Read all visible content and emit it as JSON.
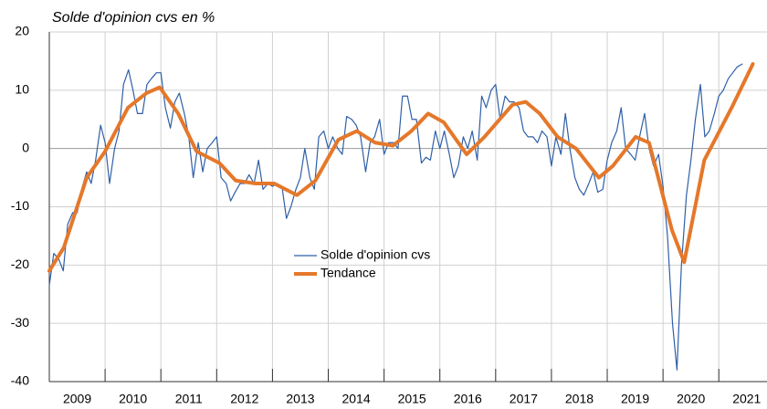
{
  "chart_data": {
    "type": "line",
    "title": "Solde d'opinion cvs en %",
    "xlim": [
      2009,
      2021.88
    ],
    "xticks": [
      2009,
      2010,
      2011,
      2012,
      2013,
      2014,
      2015,
      2016,
      2017,
      2018,
      2019,
      2020,
      2021
    ],
    "ylim": [
      -40,
      20
    ],
    "yticks": [
      -40,
      -30,
      -20,
      -10,
      0,
      10,
      20
    ],
    "grid": true,
    "series": [
      {
        "name": "Solde d'opinion cvs",
        "color": "#2f5fa7",
        "x": [
          2009,
          2009.08,
          2009.17,
          2009.25,
          2009.33,
          2009.42,
          2009.5,
          2009.58,
          2009.67,
          2009.75,
          2009.83,
          2009.92,
          2010,
          2010.08,
          2010.17,
          2010.25,
          2010.33,
          2010.42,
          2010.5,
          2010.58,
          2010.67,
          2010.75,
          2010.83,
          2010.92,
          2011,
          2011.08,
          2011.17,
          2011.25,
          2011.33,
          2011.42,
          2011.5,
          2011.58,
          2011.67,
          2011.75,
          2011.83,
          2011.92,
          2012,
          2012.08,
          2012.17,
          2012.25,
          2012.33,
          2012.42,
          2012.5,
          2012.58,
          2012.67,
          2012.75,
          2012.83,
          2012.92,
          2013,
          2013.08,
          2013.17,
          2013.25,
          2013.33,
          2013.42,
          2013.5,
          2013.58,
          2013.67,
          2013.75,
          2013.83,
          2013.92,
          2014,
          2014.08,
          2014.17,
          2014.25,
          2014.33,
          2014.42,
          2014.5,
          2014.58,
          2014.67,
          2014.75,
          2014.83,
          2014.92,
          2015,
          2015.08,
          2015.17,
          2015.25,
          2015.33,
          2015.42,
          2015.5,
          2015.58,
          2015.67,
          2015.75,
          2015.83,
          2015.92,
          2016,
          2016.08,
          2016.17,
          2016.25,
          2016.33,
          2016.42,
          2016.5,
          2016.58,
          2016.67,
          2016.75,
          2016.83,
          2016.92,
          2017,
          2017.08,
          2017.17,
          2017.25,
          2017.33,
          2017.42,
          2017.5,
          2017.58,
          2017.67,
          2017.75,
          2017.83,
          2017.92,
          2018,
          2018.08,
          2018.17,
          2018.25,
          2018.33,
          2018.42,
          2018.5,
          2018.58,
          2018.67,
          2018.75,
          2018.83,
          2018.92,
          2019,
          2019.08,
          2019.17,
          2019.25,
          2019.33,
          2019.42,
          2019.5,
          2019.58,
          2019.67,
          2019.75,
          2019.83,
          2019.92,
          2020,
          2020.08,
          2020.17,
          2020.25,
          2020.33,
          2020.42,
          2020.5,
          2020.58,
          2020.67,
          2020.75,
          2020.83,
          2020.92,
          2021,
          2021.08,
          2021.17,
          2021.25,
          2021.33,
          2021.42
        ],
        "values": [
          -23.5,
          -18,
          -19,
          -21,
          -13,
          -11,
          -11,
          -7,
          -4,
          -6,
          -2,
          4,
          1,
          -6,
          0,
          3,
          11,
          13.5,
          10,
          6,
          6,
          11,
          12,
          13,
          13,
          7,
          3.5,
          8,
          9.5,
          6,
          2,
          -5,
          1,
          -4,
          0,
          1,
          2,
          -5,
          -6,
          -9,
          -7.5,
          -6,
          -6,
          -4.5,
          -6,
          -2,
          -7,
          -6,
          -6.5,
          -6,
          -6.5,
          -12,
          -10,
          -7,
          -5,
          0,
          -5,
          -7,
          2,
          3,
          0,
          2,
          0,
          -1,
          5.5,
          5,
          4,
          2,
          -4,
          1,
          2,
          5,
          -1,
          1,
          1,
          0,
          9,
          9,
          5,
          5,
          -2.5,
          -1.5,
          -2,
          3,
          0,
          3,
          -1,
          -5,
          -3,
          2,
          0,
          3,
          -2,
          9,
          7,
          10,
          11,
          5,
          9,
          8,
          8,
          7,
          3,
          2,
          2,
          1,
          3,
          2,
          -3,
          2,
          -1,
          6,
          0,
          -5,
          -7,
          -8,
          -6,
          -4,
          -7.5,
          -7,
          -2,
          1,
          3,
          7,
          0,
          -1,
          -2,
          2,
          6,
          0,
          -3,
          -1,
          -6.5,
          -15,
          -30,
          -38,
          -20,
          -8,
          -2,
          5,
          11,
          2,
          3,
          6,
          9,
          10,
          12,
          13,
          14,
          14.5
        ]
      },
      {
        "name": "Tendance",
        "color": "#e5782a",
        "x": [
          2009,
          2009.26,
          2009.67,
          2010,
          2010.41,
          2010.74,
          2010.98,
          2011.31,
          2011.64,
          2012.05,
          2012.34,
          2012.7,
          2013.03,
          2013.44,
          2013.77,
          2014.18,
          2014.51,
          2014.84,
          2015.16,
          2015.49,
          2015.79,
          2016.07,
          2016.48,
          2016.8,
          2017.3,
          2017.54,
          2017.79,
          2018.11,
          2018.44,
          2018.85,
          2019.1,
          2019.51,
          2019.75,
          2020.16,
          2020.38,
          2020.74,
          2021.23,
          2021.61
        ],
        "values": [
          -21,
          -17,
          -5,
          -0.5,
          7,
          9.5,
          10.5,
          6,
          -0.5,
          -2.5,
          -5.5,
          -6,
          -6,
          -8,
          -5.5,
          1.5,
          3,
          1,
          0.5,
          3,
          6,
          4.5,
          -1,
          2,
          7.5,
          8,
          6,
          2,
          0,
          -5,
          -3,
          2,
          1,
          -14,
          -19.5,
          -2,
          7,
          14.5
        ]
      }
    ]
  }
}
